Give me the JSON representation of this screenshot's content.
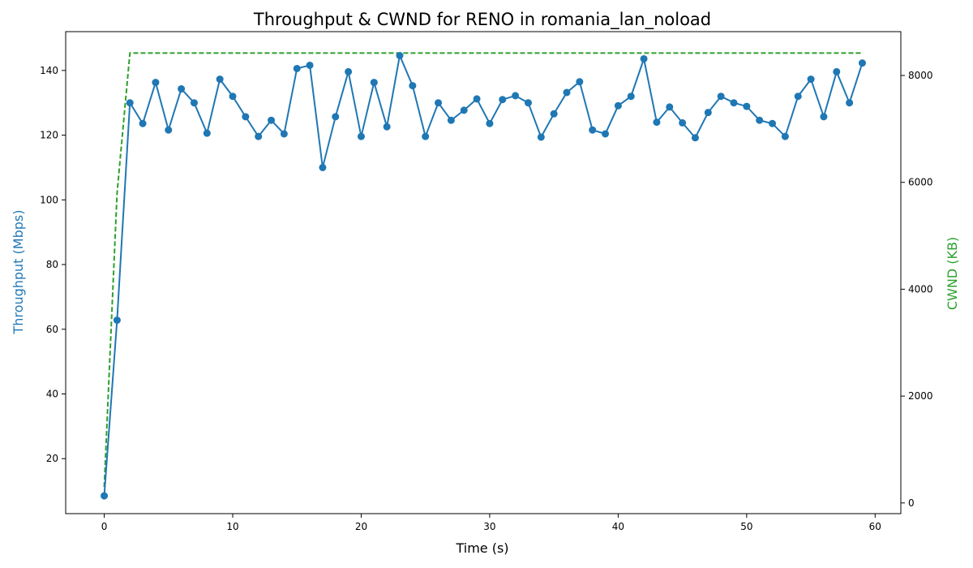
{
  "chart_data": {
    "type": "line",
    "title": "Throughput & CWND for RENO in romania_lan_noload",
    "xlabel": "Time (s)",
    "ylabel_left": "Throughput (Mbps)",
    "ylabel_right": "CWND (KB)",
    "xlim": [
      -3,
      62
    ],
    "ylim_left": [
      3,
      152
    ],
    "ylim_right": [
      -200,
      8820
    ],
    "x_ticks": [
      0,
      10,
      20,
      30,
      40,
      50,
      60
    ],
    "y_ticks_left": [
      20,
      40,
      60,
      80,
      100,
      120,
      140
    ],
    "y_ticks_right": [
      0,
      2000,
      4000,
      6000,
      8000
    ],
    "grid": false,
    "colors": {
      "throughput": "#1f77b4",
      "cwnd": "#2ca02c"
    },
    "series": [
      {
        "axis": "left",
        "style": "solid-markers",
        "x": [
          0,
          1,
          2,
          3,
          4,
          5,
          6,
          7,
          8,
          9,
          10,
          11,
          12,
          13,
          14,
          15,
          16,
          17,
          18,
          19,
          20,
          21,
          22,
          23,
          24,
          25,
          26,
          27,
          28,
          29,
          30,
          31,
          32,
          33,
          34,
          35,
          36,
          37,
          38,
          39,
          40,
          41,
          42,
          43,
          44,
          45,
          46,
          47,
          48,
          49,
          50,
          51,
          52,
          53,
          54,
          55,
          56,
          57,
          58,
          59
        ],
        "values": [
          8.5,
          62.8,
          130,
          123.6,
          136.3,
          121.6,
          134.3,
          130,
          120.6,
          137.3,
          132,
          125.7,
          119.6,
          124.6,
          120.4,
          140.6,
          141.6,
          110,
          125.7,
          139.6,
          119.6,
          136.3,
          122.6,
          144.6,
          135.3,
          119.6,
          130,
          124.6,
          127.7,
          131.2,
          123.6,
          131,
          132.2,
          130,
          119.4,
          126.6,
          133.2,
          136.5,
          121.6,
          120.4,
          129.1,
          132,
          143.6,
          124,
          128.7,
          123.8,
          119.2,
          127,
          132,
          130,
          128.9,
          124.6,
          123.6,
          119.6,
          132,
          137.3,
          125.7,
          139.6,
          130,
          142.3
        ]
      },
      {
        "axis": "right",
        "style": "dashed",
        "x": [
          0,
          1,
          2,
          3,
          4,
          5,
          6,
          7,
          8,
          9,
          10,
          11,
          12,
          13,
          14,
          15,
          16,
          17,
          18,
          19,
          20,
          21,
          22,
          23,
          24,
          25,
          26,
          27,
          28,
          29,
          30,
          31,
          32,
          33,
          34,
          35,
          36,
          37,
          38,
          39,
          40,
          41,
          42,
          43,
          44,
          45,
          46,
          47,
          48,
          49,
          50,
          51,
          52,
          53,
          54,
          55,
          56,
          57,
          58,
          59
        ],
        "values": [
          300,
          5800,
          8420,
          8420,
          8420,
          8420,
          8420,
          8420,
          8420,
          8420,
          8420,
          8420,
          8420,
          8420,
          8420,
          8420,
          8420,
          8420,
          8420,
          8420,
          8420,
          8420,
          8420,
          8420,
          8420,
          8420,
          8420,
          8420,
          8420,
          8420,
          8420,
          8420,
          8420,
          8420,
          8420,
          8420,
          8420,
          8420,
          8420,
          8420,
          8420,
          8420,
          8420,
          8420,
          8420,
          8420,
          8420,
          8420,
          8420,
          8420,
          8420,
          8420,
          8420,
          8420,
          8420,
          8420,
          8420,
          8420,
          8420,
          8420
        ]
      }
    ]
  }
}
